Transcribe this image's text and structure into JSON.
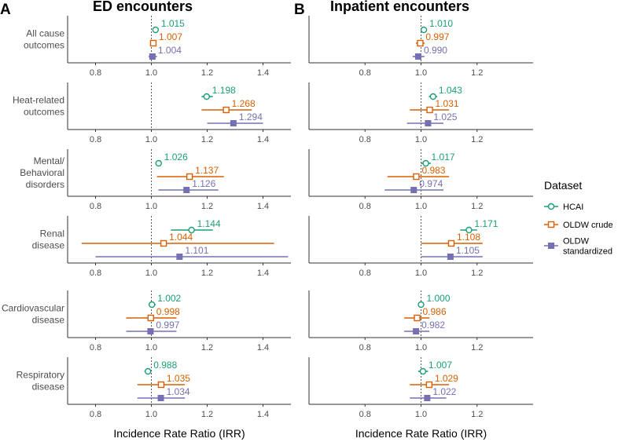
{
  "chart_data": {
    "type": "forest",
    "panels": [
      {
        "letter": "A",
        "title": "ED encounters",
        "xlim": [
          0.7,
          1.5
        ],
        "ticks": [
          0.8,
          1.0,
          1.2,
          1.4
        ],
        "tick_labels": [
          "0.8",
          "1.0",
          "1.2",
          "1.4"
        ]
      },
      {
        "letter": "B",
        "title": "Inpatient encounters",
        "xlim": [
          0.6,
          1.4
        ],
        "ticks": [
          0.8,
          1.0,
          1.2
        ],
        "tick_labels": [
          "0.8",
          "1.0",
          "1.2"
        ]
      }
    ],
    "xlabel": "Incidence Rate Ratio (IRR)",
    "reference_line": 1.0,
    "series": [
      {
        "key": "hcai",
        "name": "HCAI",
        "color": "#1b9e77",
        "marker": "open-circle"
      },
      {
        "key": "crude",
        "name": "OLDW crude",
        "color": "#d95f02",
        "marker": "open-square"
      },
      {
        "key": "std",
        "name": "OLDW standardized",
        "color": "#7570b3",
        "marker": "filled-square"
      }
    ],
    "outcomes": [
      {
        "label": [
          "All cause",
          "outcomes"
        ],
        "ed": [
          {
            "est": 1.015,
            "lo": 1.008,
            "hi": 1.022,
            "label": "1.015"
          },
          {
            "est": 1.007,
            "lo": 0.998,
            "hi": 1.016,
            "label": "1.007"
          },
          {
            "est": 1.004,
            "lo": 0.99,
            "hi": 1.02,
            "label": "1.004"
          }
        ],
        "inp": [
          {
            "est": 1.01,
            "lo": 1.0,
            "hi": 1.02,
            "label": "1.010"
          },
          {
            "est": 0.997,
            "lo": 0.982,
            "hi": 1.013,
            "label": "0.997"
          },
          {
            "est": 0.99,
            "lo": 0.97,
            "hi": 1.012,
            "label": "0.990"
          }
        ]
      },
      {
        "label": [
          "Heat-related",
          "outcomes"
        ],
        "ed": [
          {
            "est": 1.198,
            "lo": 1.18,
            "hi": 1.22,
            "label": "1.198"
          },
          {
            "est": 1.268,
            "lo": 1.18,
            "hi": 1.36,
            "label": "1.268"
          },
          {
            "est": 1.294,
            "lo": 1.2,
            "hi": 1.4,
            "label": "1.294"
          }
        ],
        "inp": [
          {
            "est": 1.043,
            "lo": 1.028,
            "hi": 1.058,
            "label": "1.043"
          },
          {
            "est": 1.031,
            "lo": 0.96,
            "hi": 1.1,
            "label": "1.031"
          },
          {
            "est": 1.025,
            "lo": 0.95,
            "hi": 1.08,
            "label": "1.025"
          }
        ]
      },
      {
        "label": [
          "Mental/",
          "Behavioral",
          "disorders"
        ],
        "ed": [
          {
            "est": 1.026,
            "lo": 1.02,
            "hi": 1.032,
            "label": "1.026"
          },
          {
            "est": 1.137,
            "lo": 1.02,
            "hi": 1.26,
            "label": "1.137"
          },
          {
            "est": 1.126,
            "lo": 1.025,
            "hi": 1.24,
            "label": "1.126"
          }
        ],
        "inp": [
          {
            "est": 1.017,
            "lo": 1.0,
            "hi": 1.035,
            "label": "1.017"
          },
          {
            "est": 0.983,
            "lo": 0.88,
            "hi": 1.1,
            "label": "0.983"
          },
          {
            "est": 0.974,
            "lo": 0.87,
            "hi": 1.08,
            "label": "0.974"
          }
        ]
      },
      {
        "label": [
          "Renal",
          "disease"
        ],
        "ed": [
          {
            "est": 1.144,
            "lo": 1.07,
            "hi": 1.22,
            "label": "1.144"
          },
          {
            "est": 1.044,
            "lo": 0.75,
            "hi": 1.44,
            "label": "1.044"
          },
          {
            "est": 1.101,
            "lo": 0.8,
            "hi": 1.49,
            "label": "1.101"
          }
        ],
        "inp": [
          {
            "est": 1.171,
            "lo": 1.14,
            "hi": 1.2,
            "label": "1.171"
          },
          {
            "est": 1.108,
            "lo": 1.0,
            "hi": 1.22,
            "label": "1.108"
          },
          {
            "est": 1.105,
            "lo": 1.0,
            "hi": 1.22,
            "label": "1.105"
          }
        ]
      },
      {
        "label": [
          "Cardiovascular",
          "disease"
        ],
        "ed": [
          {
            "est": 1.002,
            "lo": 0.99,
            "hi": 1.015,
            "label": "1.002"
          },
          {
            "est": 0.998,
            "lo": 0.91,
            "hi": 1.09,
            "label": "0.998"
          },
          {
            "est": 0.997,
            "lo": 0.91,
            "hi": 1.09,
            "label": "0.997"
          }
        ],
        "inp": [
          {
            "est": 1.0,
            "lo": 0.99,
            "hi": 1.01,
            "label": "1.000"
          },
          {
            "est": 0.986,
            "lo": 0.94,
            "hi": 1.03,
            "label": "0.986"
          },
          {
            "est": 0.982,
            "lo": 0.94,
            "hi": 1.03,
            "label": "0.982"
          }
        ]
      },
      {
        "label": [
          "Respiratory",
          "disease"
        ],
        "ed": [
          {
            "est": 0.988,
            "lo": 0.975,
            "hi": 1.0,
            "label": "0.988"
          },
          {
            "est": 1.035,
            "lo": 0.95,
            "hi": 1.12,
            "label": "1.035"
          },
          {
            "est": 1.034,
            "lo": 0.95,
            "hi": 1.12,
            "label": "1.034"
          }
        ],
        "inp": [
          {
            "est": 1.007,
            "lo": 0.99,
            "hi": 1.025,
            "label": "1.007"
          },
          {
            "est": 1.029,
            "lo": 0.96,
            "hi": 1.1,
            "label": "1.029"
          },
          {
            "est": 1.022,
            "lo": 0.96,
            "hi": 1.09,
            "label": "1.022"
          }
        ]
      }
    ],
    "legend": {
      "title": "Dataset",
      "position": "right",
      "entries": [
        [
          "HCAI"
        ],
        [
          "OLDW crude"
        ],
        [
          "OLDW",
          "standardized"
        ]
      ]
    }
  }
}
